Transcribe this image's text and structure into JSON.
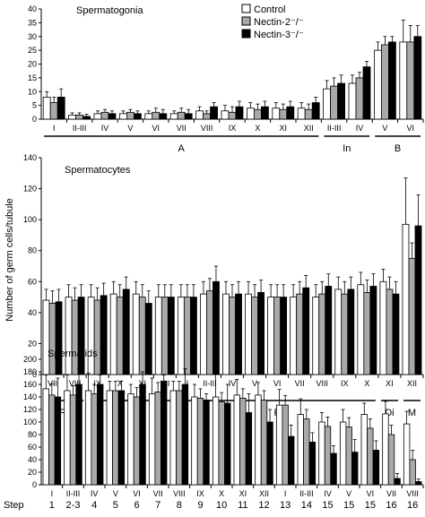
{
  "legend": [
    "Control",
    "Nectin-2⁻/⁻",
    "Nectin-3⁻/⁻"
  ],
  "colors": {
    "control": "#ffffff",
    "nectin2": "#a9a9a9",
    "nectin3": "#000000",
    "stroke": "#000000"
  },
  "shared_ylabel": "Number of germ cells/tubule",
  "step_row_label": "Step",
  "chart_data": [
    {
      "type": "bar",
      "title": "Spermatogonia",
      "ylim": [
        0,
        40
      ],
      "yticks": [
        0,
        5,
        10,
        15,
        20,
        25,
        30,
        35,
        40
      ],
      "categories": [
        "I",
        "II-III",
        "IV",
        "V",
        "VI",
        "VII",
        "VIII",
        "IX",
        "X",
        "XI",
        "XII",
        "II-III",
        "IV",
        "V",
        "VI"
      ],
      "series": [
        {
          "name": "Control",
          "values": [
            8,
            1.5,
            2,
            2,
            2,
            2,
            3,
            3,
            4,
            4,
            4,
            11,
            13,
            25,
            28
          ],
          "errors": [
            2,
            0.8,
            1,
            1,
            1,
            1,
            1.5,
            2,
            2,
            2,
            2,
            3,
            3,
            3,
            8
          ]
        },
        {
          "name": "Nectin-2⁻/⁻",
          "values": [
            6,
            1.5,
            2.5,
            2.5,
            2.5,
            2.5,
            2,
            2.5,
            3.5,
            3.5,
            3.5,
            12,
            15,
            27,
            28
          ],
          "errors": [
            2,
            0.8,
            1,
            1,
            1.5,
            1.5,
            1,
            2,
            2,
            2,
            2,
            3,
            2,
            3,
            6
          ]
        },
        {
          "name": "Nectin-3⁻/⁻",
          "values": [
            8,
            1,
            2,
            2,
            2,
            2,
            4.5,
            4.5,
            4.5,
            4.5,
            6,
            13,
            19,
            28,
            30
          ],
          "errors": [
            3,
            0.8,
            1,
            1,
            1.5,
            1.5,
            1.5,
            2,
            2,
            2,
            2,
            3,
            2,
            2,
            4
          ]
        }
      ],
      "groups": [
        {
          "label": "A",
          "from": 0,
          "to": 10
        },
        {
          "label": "In",
          "from": 11,
          "to": 12
        },
        {
          "label": "B",
          "from": 13,
          "to": 14
        }
      ]
    },
    {
      "type": "bar",
      "title": "Spermatocytes",
      "ylim": [
        0,
        140
      ],
      "yticks": [
        0,
        20,
        40,
        60,
        80,
        100,
        120,
        140
      ],
      "categories": [
        "VII",
        "VIII",
        "IX",
        "X",
        "XI",
        "XII",
        "I",
        "II-III",
        "IV",
        "V",
        "VI",
        "VII",
        "VIII",
        "IX",
        "X",
        "XI",
        "XII"
      ],
      "series": [
        {
          "name": "Control",
          "values": [
            48,
            50,
            50,
            52,
            52,
            50,
            50,
            52,
            52,
            52,
            50,
            50,
            50,
            55,
            58,
            60,
            97
          ],
          "errors": [
            7,
            8,
            8,
            8,
            8,
            8,
            8,
            8,
            8,
            8,
            8,
            8,
            8,
            8,
            8,
            8,
            30
          ]
        },
        {
          "name": "Nectin-2⁻/⁻",
          "values": [
            46,
            48,
            48,
            50,
            50,
            50,
            50,
            54,
            50,
            50,
            50,
            52,
            52,
            52,
            53,
            55,
            75
          ],
          "errors": [
            8,
            8,
            8,
            8,
            8,
            8,
            8,
            8,
            8,
            8,
            8,
            8,
            8,
            8,
            8,
            8,
            10
          ]
        },
        {
          "name": "Nectin-3⁻/⁻",
          "values": [
            47,
            50,
            51,
            55,
            46,
            50,
            50,
            60,
            52,
            53,
            50,
            56,
            57,
            55,
            57,
            52,
            96
          ],
          "errors": [
            8,
            8,
            8,
            8,
            8,
            8,
            8,
            10,
            8,
            8,
            8,
            8,
            8,
            8,
            8,
            8,
            20
          ]
        }
      ],
      "groups": [
        {
          "label": "Pl",
          "from": 0,
          "to": 1
        },
        {
          "label": "L",
          "from": 2,
          "to": 3
        },
        {
          "label": "Z",
          "from": 4,
          "to": 5
        },
        {
          "label": "P",
          "from": 6,
          "to": 14
        },
        {
          "label": "Di",
          "from": 15,
          "to": 15
        },
        {
          "label": "M",
          "from": 16,
          "to": 16
        }
      ]
    },
    {
      "type": "bar",
      "title": "Spermatids",
      "ylim": [
        0,
        200
      ],
      "yticks": [
        0,
        20,
        40,
        60,
        80,
        100,
        120,
        140,
        160,
        180,
        200
      ],
      "categories": [
        "I",
        "II-III",
        "IV",
        "V",
        "VI",
        "VII",
        "VIII",
        "IX",
        "X",
        "XI",
        "XII",
        "I",
        "II-III",
        "IV",
        "V",
        "VI",
        "VII",
        "VIII"
      ],
      "steps": [
        "1",
        "2-3",
        "4",
        "5",
        "6",
        "7",
        "8",
        "9",
        "10",
        "11",
        "12",
        "13",
        "14",
        "15",
        "15",
        "15",
        "16",
        "16"
      ],
      "series": [
        {
          "name": "Control",
          "values": [
            153,
            150,
            150,
            150,
            145,
            145,
            150,
            140,
            140,
            143,
            143,
            127,
            112,
            100,
            100,
            112,
            113,
            97
          ],
          "errors": [
            22,
            25,
            28,
            15,
            15,
            25,
            15,
            20,
            42,
            25,
            20,
            25,
            25,
            15,
            20,
            18,
            20,
            20
          ]
        },
        {
          "name": "Nectin-2⁻/⁻",
          "values": [
            143,
            143,
            145,
            150,
            140,
            148,
            150,
            138,
            132,
            138,
            135,
            127,
            105,
            93,
            92,
            90,
            80,
            40
          ],
          "errors": [
            18,
            15,
            15,
            15,
            15,
            15,
            15,
            15,
            15,
            15,
            15,
            15,
            15,
            15,
            15,
            15,
            15,
            15
          ]
        },
        {
          "name": "Nectin-3⁻/⁻",
          "values": [
            140,
            160,
            160,
            150,
            160,
            165,
            160,
            135,
            130,
            115,
            100,
            77,
            68,
            50,
            52,
            55,
            10,
            5
          ],
          "errors": [
            30,
            25,
            15,
            15,
            20,
            10,
            25,
            10,
            30,
            30,
            20,
            18,
            15,
            12,
            20,
            15,
            8,
            4
          ]
        }
      ]
    }
  ]
}
